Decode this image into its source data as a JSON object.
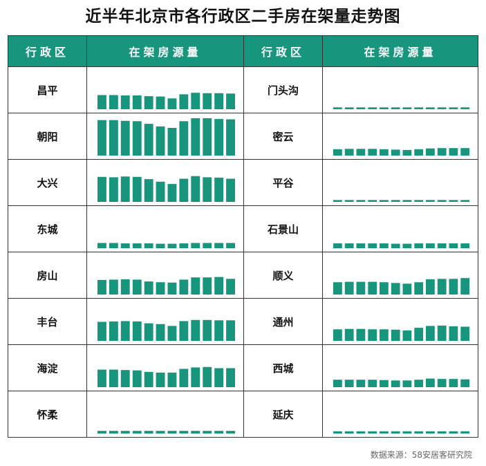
{
  "title": "近半年北京市各行政区二手房在架量走势图",
  "headers": {
    "district": "行政区",
    "listings": "在架房源量"
  },
  "source": "数据来源：58安居客研究院",
  "colors": {
    "header_bg": "#18967d",
    "bar": "#18967d"
  },
  "chart_data": {
    "type": "bar",
    "layout": "small-multiples",
    "grid": true,
    "bars_per_district": 12,
    "value_unit": "relative (ymax = 100, Chaoyang peak)",
    "ylim": [
      0,
      100
    ],
    "districts": [
      {
        "name": "昌平",
        "values": [
          38,
          38,
          37,
          37,
          35,
          34,
          29,
          40,
          44,
          43,
          43,
          42
        ]
      },
      {
        "name": "门头沟",
        "values": [
          5,
          5,
          5,
          5,
          5,
          5,
          5,
          5,
          5,
          5,
          5,
          5
        ]
      },
      {
        "name": "朝阳",
        "values": [
          95,
          95,
          93,
          92,
          85,
          78,
          74,
          92,
          100,
          100,
          98,
          97
        ]
      },
      {
        "name": "密云",
        "values": [
          17,
          18,
          18,
          18,
          17,
          16,
          15,
          17,
          19,
          20,
          20,
          20
        ]
      },
      {
        "name": "大兴",
        "values": [
          67,
          66,
          68,
          67,
          61,
          54,
          48,
          62,
          69,
          66,
          65,
          62
        ]
      },
      {
        "name": "平谷",
        "values": [
          5,
          5,
          5,
          5,
          5,
          5,
          5,
          5,
          5,
          5,
          5,
          5
        ]
      },
      {
        "name": "东城",
        "values": [
          14,
          14,
          13,
          13,
          13,
          12,
          12,
          13,
          14,
          14,
          14,
          14
        ]
      },
      {
        "name": "石景山",
        "values": [
          13,
          13,
          13,
          13,
          13,
          12,
          12,
          13,
          13,
          13,
          13,
          13
        ]
      },
      {
        "name": "房山",
        "values": [
          39,
          40,
          41,
          40,
          35,
          33,
          32,
          40,
          46,
          46,
          47,
          42
        ]
      },
      {
        "name": "顺义",
        "values": [
          33,
          34,
          34,
          34,
          33,
          31,
          29,
          33,
          41,
          42,
          42,
          44
        ]
      },
      {
        "name": "丰台",
        "values": [
          51,
          52,
          53,
          52,
          47,
          45,
          40,
          53,
          56,
          56,
          55,
          55
        ]
      },
      {
        "name": "通州",
        "values": [
          31,
          32,
          32,
          31,
          31,
          30,
          28,
          35,
          40,
          41,
          39,
          38
        ]
      },
      {
        "name": "海淀",
        "values": [
          47,
          47,
          46,
          45,
          41,
          39,
          39,
          49,
          53,
          54,
          51,
          51
        ]
      },
      {
        "name": "西城",
        "values": [
          20,
          20,
          20,
          20,
          19,
          18,
          18,
          20,
          23,
          22,
          22,
          21
        ]
      },
      {
        "name": "怀柔",
        "values": [
          7,
          7,
          7,
          7,
          7,
          7,
          7,
          7,
          7,
          7,
          7,
          7
        ]
      },
      {
        "name": "延庆",
        "values": [
          6,
          6,
          6,
          6,
          6,
          6,
          6,
          6,
          6,
          6,
          6,
          6
        ]
      }
    ]
  }
}
